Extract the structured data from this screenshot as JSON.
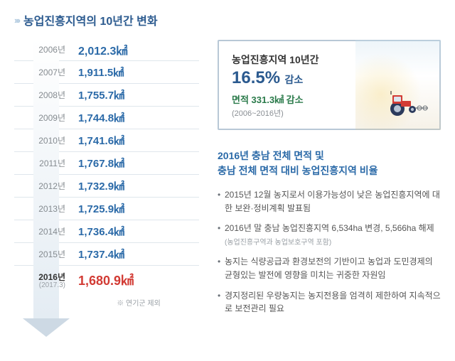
{
  "title": "농업진흥지역의 10년간 변화",
  "years": [
    {
      "year": "2006년",
      "value": "2,012.3㎢",
      "big": true
    },
    {
      "year": "2007년",
      "value": "1,911.5㎢"
    },
    {
      "year": "2008년",
      "value": "1,755.7㎢"
    },
    {
      "year": "2009년",
      "value": "1,744.8㎢"
    },
    {
      "year": "2010년",
      "value": "1,741.6㎢"
    },
    {
      "year": "2011년",
      "value": "1,767.8㎢"
    },
    {
      "year": "2012년",
      "value": "1,732.9㎢"
    },
    {
      "year": "2013년",
      "value": "1,725.9㎢"
    },
    {
      "year": "2014년",
      "value": "1,736.4㎢"
    },
    {
      "year": "2015년",
      "value": "1,737.4㎢"
    },
    {
      "year": "2016년",
      "sub": "(2017.3)",
      "value": "1,680.9㎢",
      "highlight": true
    }
  ],
  "footnote": "※ 연기군 제외",
  "highlight": {
    "line1": "농업진흥지역 10년간",
    "pct": "16.5%",
    "dec_label": "감소",
    "area": "면적 331.3㎢ 감소",
    "range": "(2006~2016년)"
  },
  "subhead_l1": "2016년 충남 전체 면적 및",
  "subhead_l2": "충남 전체 면적 대비 농업진흥지역 비율",
  "bullets": [
    {
      "text": "2015년 12월 농지로서 이용가능성이 낮은 농업진흥지역에 대한 보완·정비계획 발표됨"
    },
    {
      "text": "2016년 말 충남 농업진흥지역 6,534ha 변경, 5,566ha 해제",
      "sub": "(농업진흥구역과 농업보호구역 포함)"
    },
    {
      "text": "농지는 식량공급과 환경보전의 기반이고 농업과 도민경제의 균형있는 발전에 영향을 미치는 귀중한 자원임"
    },
    {
      "text": "경지정리된 우량농지는 농지전용을 엄격히 제한하여 지속적으로 보전관리 필요"
    }
  ]
}
